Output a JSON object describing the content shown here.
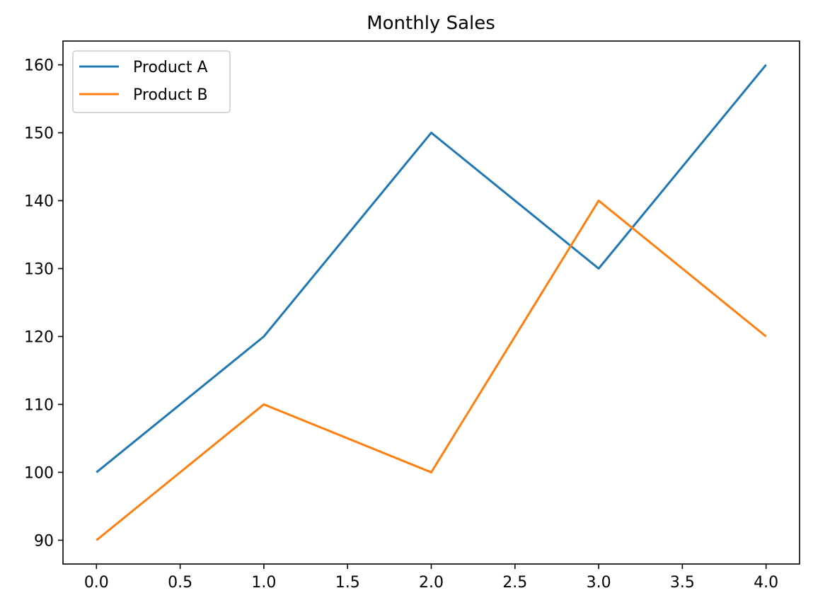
{
  "chart_data": {
    "type": "line",
    "title": "Monthly Sales",
    "xlabel": "",
    "ylabel": "",
    "xlim": [
      -0.2,
      4.2
    ],
    "ylim": [
      86.5,
      163.5
    ],
    "xticks": [
      0.0,
      0.5,
      1.0,
      1.5,
      2.0,
      2.5,
      3.0,
      3.5,
      4.0
    ],
    "xtick_labels": [
      "0.0",
      "0.5",
      "1.0",
      "1.5",
      "2.0",
      "2.5",
      "3.0",
      "3.5",
      "4.0"
    ],
    "yticks": [
      90,
      100,
      110,
      120,
      130,
      140,
      150,
      160
    ],
    "ytick_labels": [
      "90",
      "100",
      "110",
      "120",
      "130",
      "140",
      "150",
      "160"
    ],
    "grid": false,
    "legend_position": "upper-left",
    "x": [
      0,
      1,
      2,
      3,
      4
    ],
    "series": [
      {
        "name": "Product A",
        "color": "#1f77b4",
        "values": [
          100,
          120,
          150,
          130,
          160
        ]
      },
      {
        "name": "Product B",
        "color": "#ff7f0e",
        "values": [
          90,
          110,
          100,
          140,
          120
        ]
      }
    ]
  }
}
